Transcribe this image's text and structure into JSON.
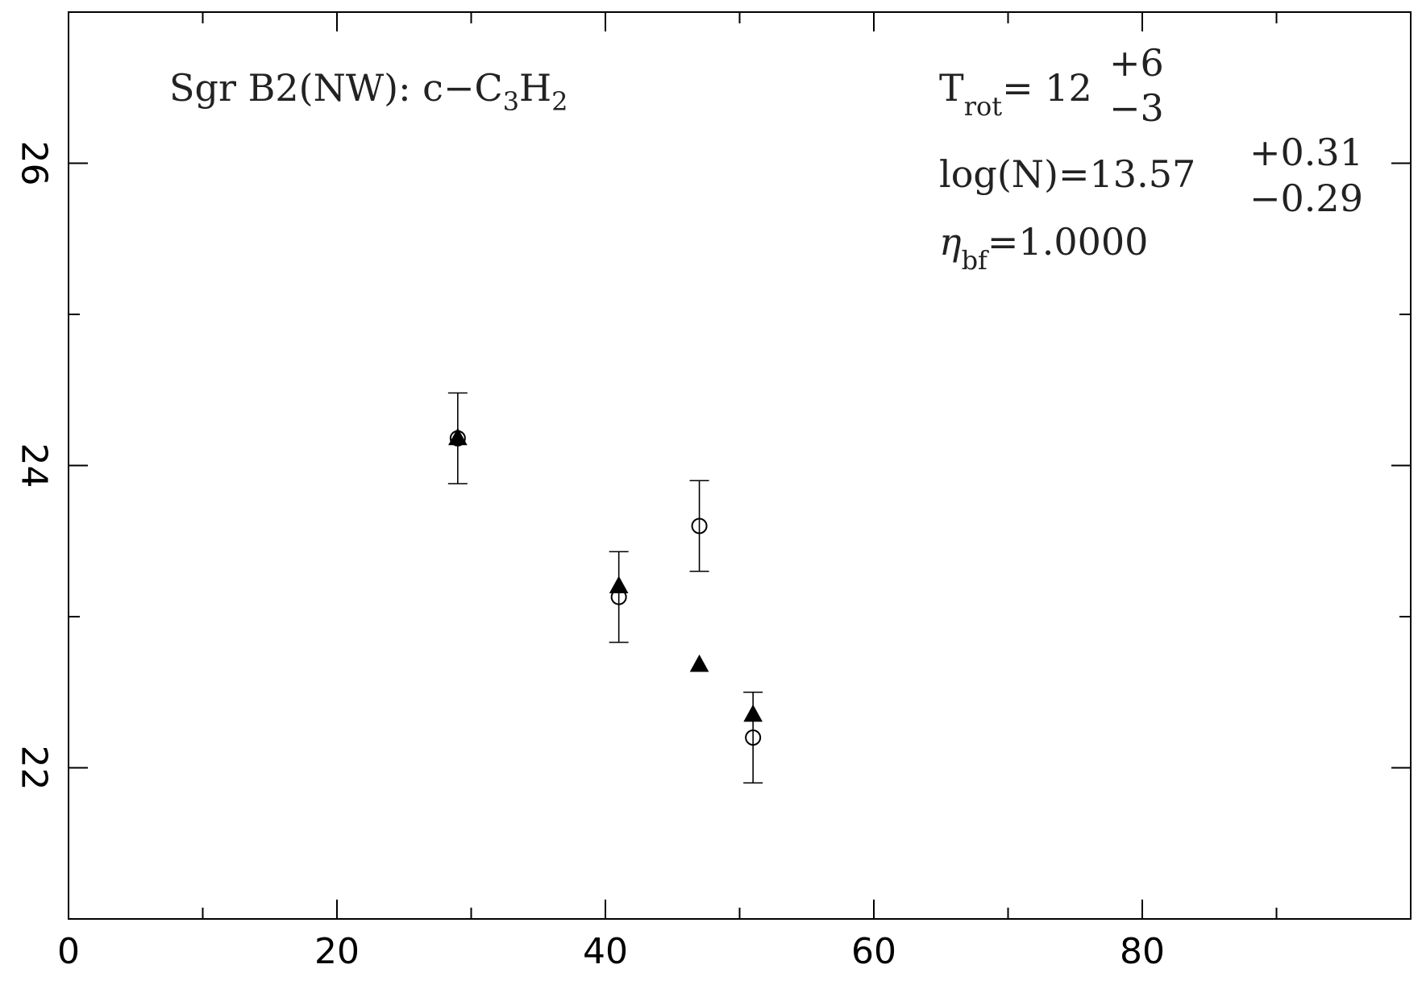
{
  "chart_data": {
    "type": "scatter",
    "title": "",
    "xlabel": "",
    "ylabel": "",
    "xlim": [
      0,
      100
    ],
    "ylim": [
      21,
      27
    ],
    "xticks": [
      0,
      20,
      40,
      60,
      80
    ],
    "yticks": [
      22,
      24,
      26
    ],
    "grid": false,
    "series": [
      {
        "marker": "open-circle",
        "color": "#000000",
        "points": [
          {
            "x": 29,
            "y": 24.18,
            "err": 0.3
          },
          {
            "x": 41,
            "y": 23.13,
            "err": 0.3
          },
          {
            "x": 47,
            "y": 23.6,
            "err": 0.3
          },
          {
            "x": 51,
            "y": 22.2,
            "err": 0.3
          }
        ]
      },
      {
        "marker": "filled-triangle",
        "color": "#000000",
        "points": [
          {
            "x": 29,
            "y": 24.18
          },
          {
            "x": 41,
            "y": 23.2
          },
          {
            "x": 47,
            "y": 22.68
          },
          {
            "x": 51,
            "y": 22.35
          }
        ]
      }
    ],
    "annotations": {
      "source": {
        "text": "Sgr B2(NW): c−C",
        "sub1": "3",
        "mid": "H",
        "sub2": "2"
      },
      "trot": {
        "label": "T",
        "sub": "rot",
        "eq": "=  12",
        "sup": "+6",
        "inf": "−3"
      },
      "logn": {
        "label": "log(N)=13.57",
        "sup": "+0.31",
        "inf": "−0.29"
      },
      "eta": {
        "label": "η",
        "sub": "bf",
        "value": "=1.0000"
      }
    }
  }
}
